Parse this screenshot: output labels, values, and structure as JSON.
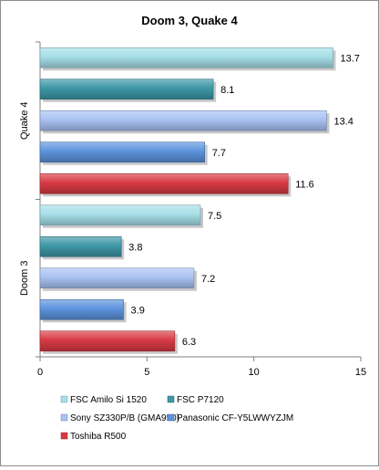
{
  "chart_data": {
    "type": "bar",
    "orientation": "horizontal",
    "title": "Doom 3, Quake 4",
    "xlabel": "",
    "ylabel": "",
    "xlim": [
      0,
      15
    ],
    "x_ticks": [
      0,
      5,
      10,
      15
    ],
    "x_tick_labels": [
      "0",
      "5",
      "10",
      "15"
    ],
    "grid": false,
    "legend_placement": "bottom",
    "categories": [
      "Quake 4",
      "Doom 3"
    ],
    "series": [
      {
        "name": "FSC Amilo Si 1520",
        "color": "#a6dfe8",
        "values": [
          13.7,
          7.5
        ],
        "labels": [
          "13.7",
          "7.5"
        ]
      },
      {
        "name": "FSC P7120",
        "color": "#3d97a6",
        "values": [
          8.1,
          3.8
        ],
        "labels": [
          "8.1",
          "3.8"
        ]
      },
      {
        "name": "Sony SZ330P/B (GMA950)",
        "color": "#a9c2f2",
        "values": [
          13.4,
          7.2
        ],
        "labels": [
          "13.4",
          "7.2"
        ]
      },
      {
        "name": "Panasonic CF-Y5LWWYZJM",
        "color": "#5c93dd",
        "values": [
          7.7,
          3.9
        ],
        "labels": [
          "7.7",
          "3.9"
        ]
      },
      {
        "name": "Toshiba R500",
        "color": "#d83a44",
        "values": [
          11.6,
          6.3
        ],
        "labels": [
          "11.6",
          "6.3"
        ]
      }
    ]
  }
}
